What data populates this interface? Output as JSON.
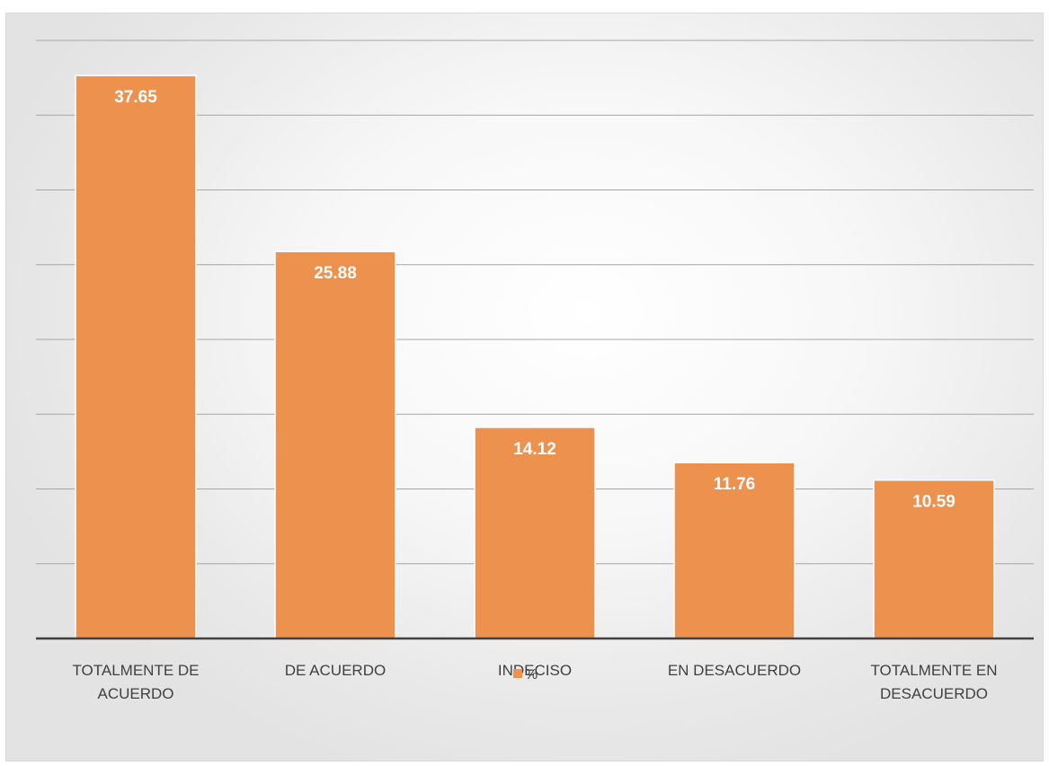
{
  "chart_data": {
    "type": "bar",
    "categories": [
      [
        "TOTALMENTE DE",
        "ACUERDO"
      ],
      [
        "DE ACUERDO"
      ],
      [
        "INDECISO"
      ],
      [
        "EN DESACUERDO"
      ],
      [
        "TOTALMENTE EN",
        "DESACUERDO"
      ]
    ],
    "series": [
      {
        "name": "%",
        "values": [
          37.65,
          25.88,
          14.12,
          11.76,
          10.59
        ]
      }
    ],
    "ylim": [
      0,
      40
    ],
    "y_gridline_step": 5,
    "grid": true,
    "data_labels": true,
    "legend_position": "bottom",
    "bar_color": "#ED914F",
    "axis_color": "#404040",
    "gridline_color": "#A6A6A6"
  }
}
